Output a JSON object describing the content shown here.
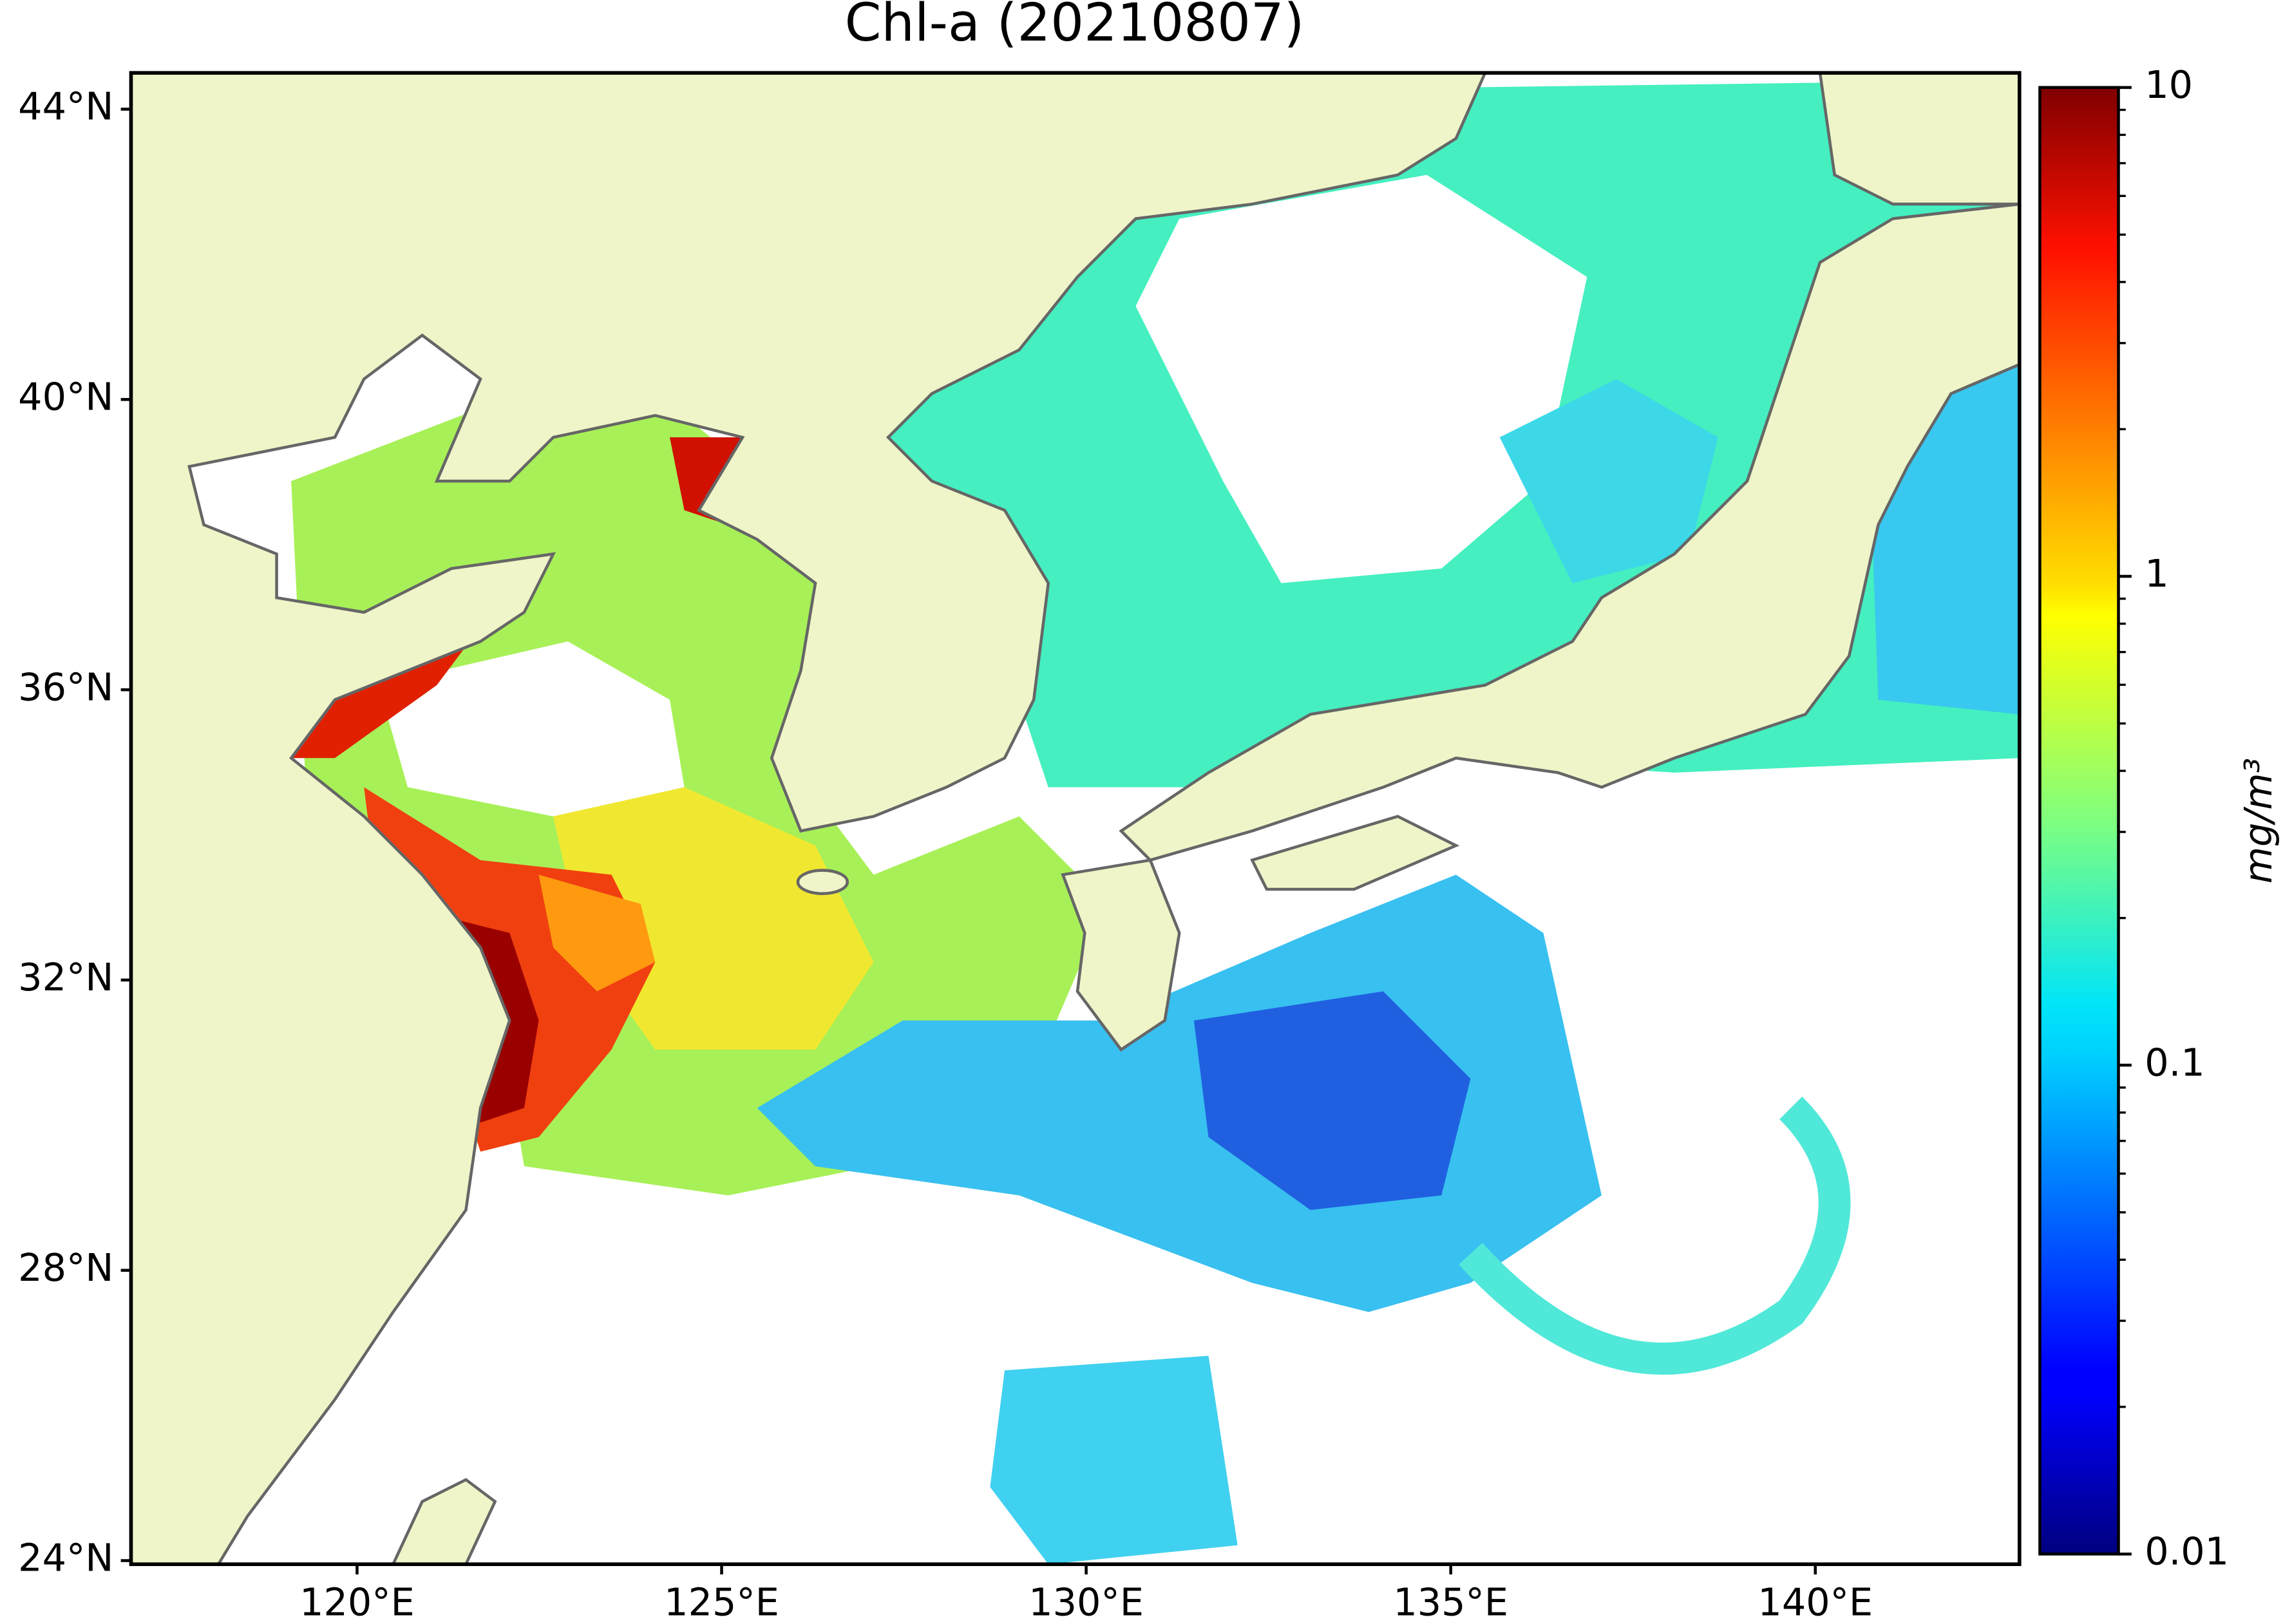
{
  "title": "Chl-a (20210807)",
  "map": {
    "xlim": [
      116.9,
      142.8
    ],
    "ylim": [
      23.95,
      44.5
    ],
    "xticks": [
      {
        "value": 120,
        "label": "120°E"
      },
      {
        "value": 125,
        "label": "125°E"
      },
      {
        "value": 130,
        "label": "130°E"
      },
      {
        "value": 135,
        "label": "135°E"
      },
      {
        "value": 140,
        "label": "140°E"
      }
    ],
    "yticks": [
      {
        "value": 24,
        "label": "24°N"
      },
      {
        "value": 28,
        "label": "28°N"
      },
      {
        "value": 32,
        "label": "32°N"
      },
      {
        "value": 36,
        "label": "36°N"
      },
      {
        "value": 40,
        "label": "40°N"
      },
      {
        "value": 44,
        "label": "44°N"
      }
    ]
  },
  "colorbar": {
    "label": "mg/m³",
    "scale": "log",
    "colormap": "jet",
    "lim": [
      0.01,
      10
    ],
    "ticks": [
      0.01,
      0.1,
      1,
      10
    ]
  }
}
